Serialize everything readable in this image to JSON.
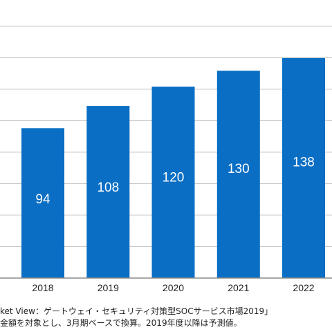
{
  "chart_data": {
    "type": "bar",
    "categories": [
      "2018",
      "2019",
      "2020",
      "2021",
      "2022"
    ],
    "values": [
      94,
      108,
      120,
      130,
      138
    ],
    "value_labels": [
      "94",
      "108",
      "120",
      "130",
      "138"
    ],
    "bar_color": "#0a6ec4",
    "label_color": "#ffffff",
    "grid": true,
    "title": "",
    "xlabel": "",
    "ylabel": ""
  },
  "notes": [
    "ket View：ゲートウェイ・セキュリティ対策型SOCサービス市場2019」",
    "金額を対象とし、3月期ベースで換算。2019年度以降は予測値。"
  ]
}
